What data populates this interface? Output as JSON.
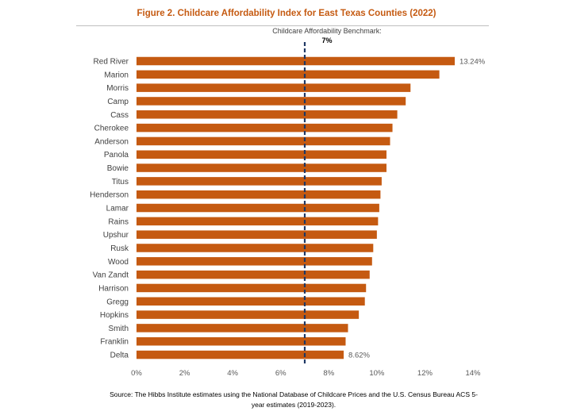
{
  "chart_data": {
    "type": "bar",
    "orientation": "horizontal",
    "title": "Figure 2. Childcare Affordability Index for East Texas Counties (2022)",
    "categories": [
      "Red River",
      "Marion",
      "Morris",
      "Camp",
      "Cass",
      "Cherokee",
      "Anderson",
      "Panola",
      "Bowie",
      "Titus",
      "Henderson",
      "Lamar",
      "Rains",
      "Upshur",
      "Rusk",
      "Wood",
      "Van Zandt",
      "Harrison",
      "Gregg",
      "Hopkins",
      "Smith",
      "Franklin",
      "Delta"
    ],
    "values": [
      13.24,
      12.6,
      11.4,
      11.2,
      10.85,
      10.65,
      10.55,
      10.4,
      10.4,
      10.2,
      10.15,
      10.1,
      10.05,
      10.0,
      9.85,
      9.8,
      9.7,
      9.55,
      9.5,
      9.25,
      8.8,
      8.7,
      8.62
    ],
    "data_labels": [
      {
        "category": "Red River",
        "text": "13.24%"
      },
      {
        "category": "Delta",
        "text": "8.62%"
      }
    ],
    "xlim": [
      0,
      14
    ],
    "xticks": [
      0,
      2,
      4,
      6,
      8,
      10,
      12,
      14
    ],
    "xtick_labels": [
      "0%",
      "2%",
      "4%",
      "6%",
      "8%",
      "10%",
      "12%",
      "14%"
    ],
    "xlabel": "",
    "ylabel": "",
    "bar_color": "#c55a11",
    "benchmark": {
      "value": 7,
      "label": "Childcare Affordability Benchmark:",
      "value_label": "7%",
      "color": "#1f3864"
    }
  },
  "source": "Source: The Hibbs Institute estimates using the National Database of Childcare Prices and the U.S. Census Bureau ACS 5-year estimates (2019-2023)."
}
